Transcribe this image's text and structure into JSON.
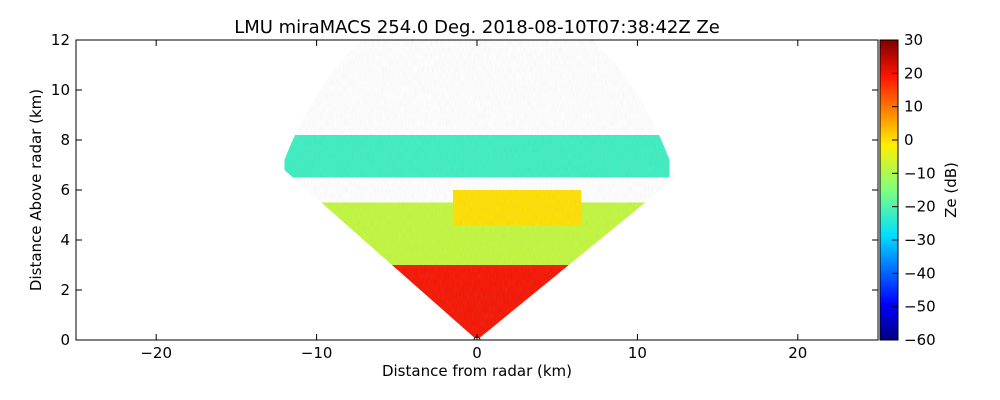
{
  "chart_data": {
    "type": "heatmap",
    "title": "LMU miraMACS 254.0 Deg. 2018-08-10T07:38:42Z  Ze",
    "xlabel": "Distance from radar (km)",
    "ylabel": "Distance Above radar  (km)",
    "xlim": [
      -25,
      25
    ],
    "ylim": [
      0,
      12
    ],
    "xticks": [
      -20,
      -10,
      0,
      10,
      20
    ],
    "yticks": [
      0,
      2,
      4,
      6,
      8,
      10,
      12
    ],
    "grid": false,
    "colormap": "jet",
    "colorbar": {
      "label": "Ze (dB)",
      "range": [
        -60,
        30
      ],
      "ticks": [
        30,
        20,
        10,
        0,
        -10,
        -20,
        -30,
        -40,
        -50,
        -60
      ]
    },
    "radar_position": {
      "x": 0,
      "y": 0
    },
    "scan": {
      "max_range_km": 14.0,
      "left_edge_top_height_km": 6.9,
      "right_edge_top_height_km": 6.5
    },
    "regions": [
      {
        "description": "red low-level band",
        "x_range": [
          -14,
          14
        ],
        "height_km": [
          0,
          3.0
        ],
        "ze_dB": 20
      },
      {
        "description": "yellow-green mid level",
        "x_range": [
          -14,
          14
        ],
        "height_km": [
          3.0,
          5.5
        ],
        "ze_dB": -8
      },
      {
        "description": "yellow-orange patch",
        "x_range": [
          -1.5,
          6.5
        ],
        "height_km": [
          4.6,
          6.0
        ],
        "ze_dB": 0
      },
      {
        "description": "green-cyan cloud top",
        "x_range": [
          -12,
          12
        ],
        "height_km": [
          6.5,
          8.2
        ],
        "ze_dB": -22
      }
    ]
  }
}
